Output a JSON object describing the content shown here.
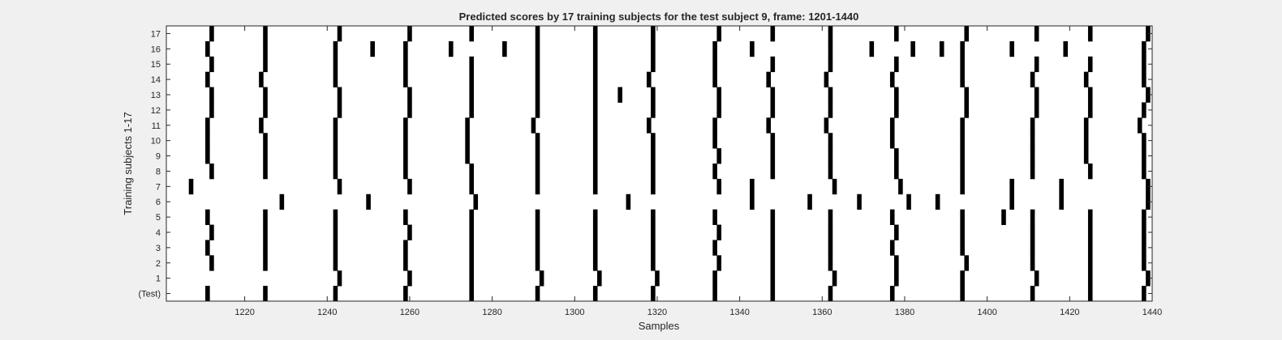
{
  "chart_data": {
    "type": "heatmap",
    "title": "Predicted scores by 17 training subjects for the test subject 9, frame: 1201-1440",
    "xlabel": "Samples",
    "ylabel": "Training subjects 1-17",
    "xlim": [
      1201,
      1440
    ],
    "x_ticks": [
      1220,
      1240,
      1260,
      1280,
      1300,
      1320,
      1340,
      1360,
      1380,
      1400,
      1420,
      1440
    ],
    "y_tick_labels": [
      "(Test)",
      "1",
      "2",
      "3",
      "4",
      "5",
      "6",
      "7",
      "8",
      "9",
      "10",
      "11",
      "12",
      "13",
      "14",
      "15",
      "16",
      "17"
    ],
    "grid": false,
    "rows": [
      {
        "label": "(Test)",
        "events": [
          1211,
          1225,
          1242,
          1259,
          1275,
          1291,
          1305,
          1319,
          1334,
          1348,
          1362,
          1377,
          1394,
          1411,
          1425,
          1438
        ]
      },
      {
        "label": "1",
        "events": [
          1243,
          1260,
          1275,
          1292,
          1306,
          1320,
          1334,
          1348,
          1363,
          1378,
          1394,
          1412,
          1425,
          1439
        ]
      },
      {
        "label": "2",
        "events": [
          1212,
          1225,
          1242,
          1259,
          1275,
          1291,
          1305,
          1319,
          1335,
          1348,
          1362,
          1378,
          1395,
          1411,
          1425,
          1438
        ]
      },
      {
        "label": "3",
        "events": [
          1211,
          1225,
          1242,
          1259,
          1275,
          1291,
          1305,
          1319,
          1334,
          1348,
          1362,
          1377,
          1394,
          1411,
          1425,
          1438
        ]
      },
      {
        "label": "4",
        "events": [
          1212,
          1225,
          1242,
          1260,
          1275,
          1291,
          1305,
          1319,
          1335,
          1348,
          1362,
          1378,
          1394,
          1411,
          1425,
          1438
        ]
      },
      {
        "label": "5",
        "events": [
          1211,
          1225,
          1242,
          1259,
          1275,
          1291,
          1305,
          1319,
          1334,
          1348,
          1362,
          1377,
          1394,
          1404,
          1411,
          1425,
          1438
        ]
      },
      {
        "label": "6",
        "events": [
          1229,
          1250,
          1276,
          1313,
          1343,
          1357,
          1369,
          1381,
          1388,
          1406,
          1418,
          1439
        ]
      },
      {
        "label": "7",
        "events": [
          1207,
          1243,
          1260,
          1275,
          1291,
          1305,
          1319,
          1335,
          1343,
          1363,
          1379,
          1394,
          1406,
          1418,
          1439
        ]
      },
      {
        "label": "8",
        "events": [
          1212,
          1225,
          1242,
          1259,
          1275,
          1291,
          1305,
          1319,
          1334,
          1348,
          1362,
          1378,
          1394,
          1411,
          1425,
          1438
        ]
      },
      {
        "label": "9",
        "events": [
          1211,
          1225,
          1242,
          1259,
          1274,
          1291,
          1305,
          1319,
          1335,
          1348,
          1362,
          1378,
          1394,
          1411,
          1424,
          1438
        ]
      },
      {
        "label": "10",
        "events": [
          1211,
          1225,
          1242,
          1259,
          1274,
          1291,
          1305,
          1319,
          1334,
          1348,
          1362,
          1377,
          1394,
          1411,
          1424,
          1438
        ]
      },
      {
        "label": "11",
        "events": [
          1211,
          1224,
          1242,
          1259,
          1274,
          1290,
          1305,
          1318,
          1334,
          1347,
          1361,
          1377,
          1394,
          1411,
          1424,
          1437
        ]
      },
      {
        "label": "12",
        "events": [
          1212,
          1225,
          1243,
          1260,
          1275,
          1291,
          1305,
          1319,
          1335,
          1348,
          1362,
          1378,
          1395,
          1412,
          1425,
          1438
        ]
      },
      {
        "label": "13",
        "events": [
          1212,
          1225,
          1243,
          1260,
          1275,
          1291,
          1305,
          1311,
          1319,
          1335,
          1348,
          1362,
          1378,
          1395,
          1412,
          1425,
          1439
        ]
      },
      {
        "label": "14",
        "events": [
          1211,
          1224,
          1242,
          1259,
          1275,
          1291,
          1305,
          1318,
          1334,
          1347,
          1361,
          1377,
          1394,
          1411,
          1424,
          1438
        ]
      },
      {
        "label": "15",
        "events": [
          1212,
          1225,
          1242,
          1259,
          1275,
          1291,
          1305,
          1319,
          1334,
          1348,
          1362,
          1378,
          1394,
          1412,
          1425,
          1438
        ]
      },
      {
        "label": "16",
        "events": [
          1211,
          1225,
          1242,
          1251,
          1259,
          1270,
          1283,
          1291,
          1305,
          1319,
          1334,
          1343,
          1362,
          1372,
          1382,
          1389,
          1394,
          1406,
          1419,
          1438
        ]
      },
      {
        "label": "17",
        "events": [
          1212,
          1225,
          1243,
          1260,
          1275,
          1291,
          1305,
          1319,
          1335,
          1348,
          1362,
          1378,
          1395,
          1412,
          1425,
          1439
        ]
      }
    ]
  }
}
